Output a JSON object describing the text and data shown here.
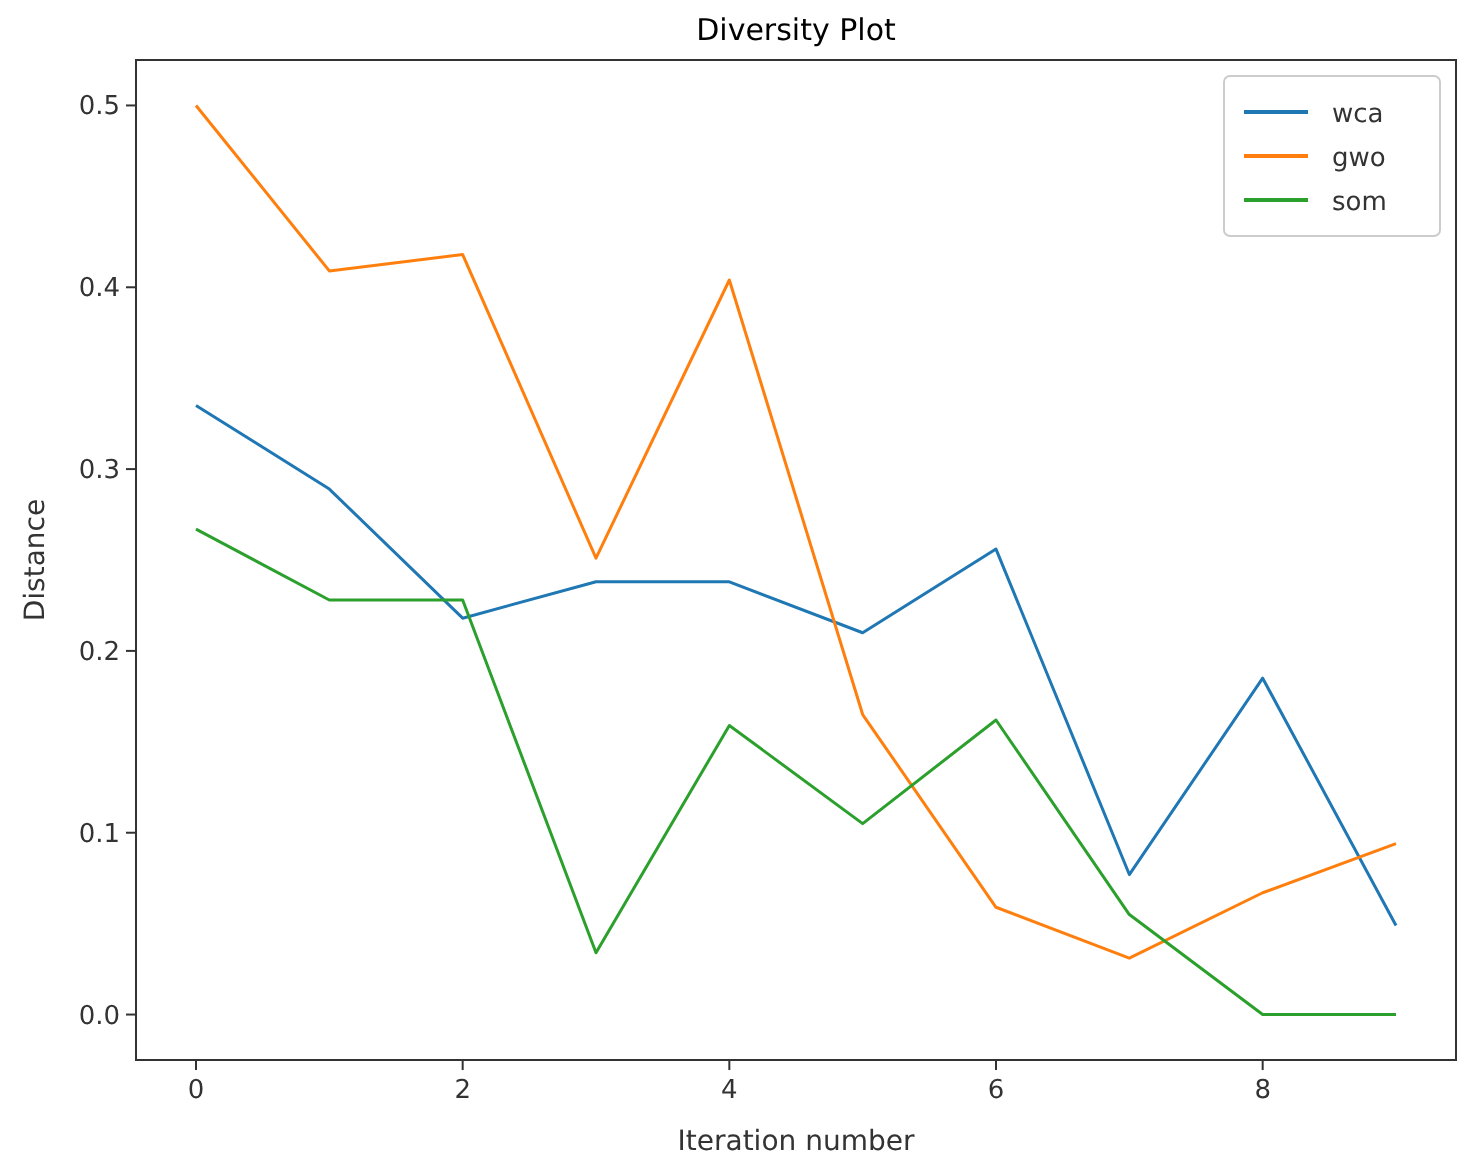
{
  "chart_data": {
    "type": "line",
    "title": "Diversity Plot",
    "xlabel": "Iteration number",
    "ylabel": "Distance",
    "x": [
      0,
      1,
      2,
      3,
      4,
      5,
      6,
      7,
      8,
      9
    ],
    "xlim": [
      -0.45,
      9.45
    ],
    "xticks": [
      0,
      2,
      4,
      6,
      8
    ],
    "ylim": [
      -0.025,
      0.525
    ],
    "yticks": [
      {
        "value": 0,
        "label": "0.0"
      },
      0.1,
      0.2,
      0.3,
      0.4,
      0.5
    ],
    "legend": "top right",
    "grid": false,
    "series": [
      {
        "name": "wca",
        "color": "#1f77b4",
        "values": [
          0.335,
          0.289,
          0.218,
          0.238,
          0.238,
          0.21,
          0.256,
          0.077,
          0.185,
          0.049
        ]
      },
      {
        "name": "gwo",
        "color": "#ff7f0e",
        "values": [
          0.5,
          0.409,
          0.418,
          0.251,
          0.404,
          0.165,
          0.059,
          0.031,
          0.067,
          0.094
        ]
      },
      {
        "name": "som",
        "color": "#2ca02c",
        "values": [
          0.267,
          0.228,
          0.228,
          0.034,
          0.159,
          0.105,
          0.162,
          0.055,
          0,
          0
        ]
      }
    ]
  }
}
